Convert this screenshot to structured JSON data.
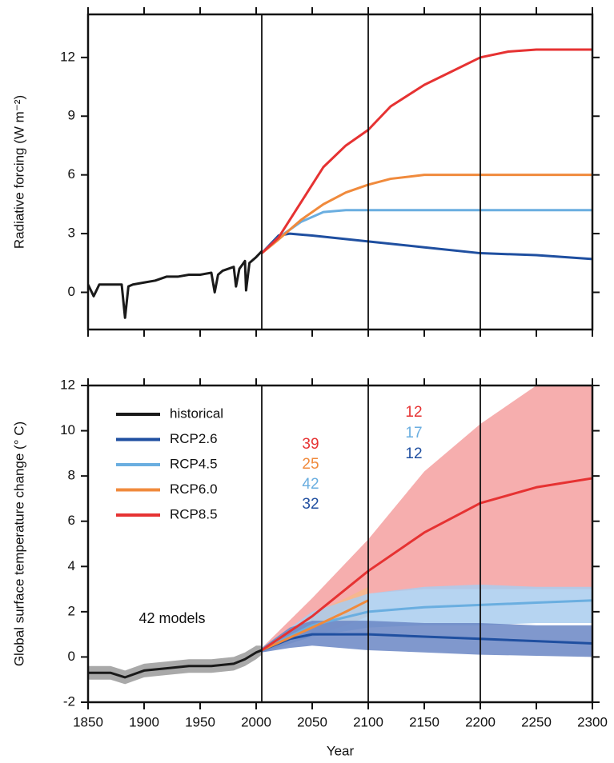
{
  "chart_data": [
    {
      "type": "line",
      "ylabel": "Radiative  forcing (W m⁻²)",
      "xlim": [
        1850,
        2300
      ],
      "ylim": [
        -1.9,
        14.2
      ],
      "xticks": [
        1850,
        1900,
        1950,
        2000,
        2050,
        2100,
        2150,
        2200,
        2250,
        2300
      ],
      "xticklabels": false,
      "yticks": [
        0,
        3,
        6,
        9,
        12
      ],
      "vlines": [
        2005,
        2100,
        2200
      ],
      "series": [
        {
          "name": "historical",
          "color": "#1a1a1a",
          "x": [
            1850,
            1855,
            1860,
            1870,
            1880,
            1883,
            1886,
            1890,
            1900,
            1910,
            1920,
            1930,
            1940,
            1950,
            1960,
            1963,
            1966,
            1970,
            1980,
            1982,
            1985,
            1990,
            1991,
            1994,
            2000,
            2005
          ],
          "values": [
            0.4,
            -0.2,
            0.4,
            0.4,
            0.4,
            -1.3,
            0.3,
            0.4,
            0.5,
            0.6,
            0.8,
            0.8,
            0.9,
            0.9,
            1.0,
            0.0,
            0.9,
            1.1,
            1.3,
            0.3,
            1.2,
            1.6,
            0.1,
            1.5,
            1.8,
            2.1
          ]
        },
        {
          "name": "RCP2.6",
          "color": "#1f4fa0",
          "x": [
            2005,
            2020,
            2030,
            2050,
            2100,
            2150,
            2200,
            2250,
            2300
          ],
          "values": [
            2.0,
            2.9,
            3.0,
            2.9,
            2.6,
            2.3,
            2.0,
            1.9,
            1.7
          ]
        },
        {
          "name": "RCP4.5",
          "color": "#6aaee0",
          "x": [
            2005,
            2020,
            2040,
            2060,
            2080,
            2100,
            2150,
            2300
          ],
          "values": [
            2.0,
            2.8,
            3.6,
            4.1,
            4.2,
            4.2,
            4.2,
            4.2
          ]
        },
        {
          "name": "RCP6.0",
          "color": "#f08a3c",
          "x": [
            2005,
            2020,
            2040,
            2060,
            2080,
            2100,
            2120,
            2150,
            2300
          ],
          "values": [
            2.0,
            2.7,
            3.7,
            4.5,
            5.1,
            5.5,
            5.8,
            6.0,
            6.0
          ]
        },
        {
          "name": "RCP8.5",
          "color": "#e63232",
          "x": [
            2005,
            2020,
            2040,
            2060,
            2080,
            2100,
            2120,
            2150,
            2175,
            2200,
            2225,
            2250,
            2300
          ],
          "values": [
            2.0,
            2.8,
            4.6,
            6.4,
            7.5,
            8.3,
            9.5,
            10.6,
            11.3,
            12.0,
            12.3,
            12.4,
            12.4
          ]
        }
      ]
    },
    {
      "type": "line",
      "xlabel": "Year",
      "ylabel": "Global surface temperature change (° C)",
      "xlim": [
        1850,
        2300
      ],
      "ylim": [
        -2,
        12
      ],
      "xticks": [
        1850,
        1900,
        1950,
        2000,
        2050,
        2100,
        2150,
        2200,
        2250,
        2300
      ],
      "xticklabels": true,
      "yticks": [
        -2,
        0,
        2,
        4,
        6,
        8,
        10,
        12
      ],
      "vlines": [
        2005,
        2100,
        2200
      ],
      "legend": "upper left",
      "annotations": [
        {
          "text": "42 models",
          "color": "#111"
        },
        {
          "text": 39,
          "color": "#e63232"
        },
        {
          "text": 25,
          "color": "#f08a3c"
        },
        {
          "text": 42,
          "color": "#6aaee0"
        },
        {
          "text": 32,
          "color": "#1f4fa0"
        },
        {
          "text": 12,
          "color": "#e63232"
        },
        {
          "text": 17,
          "color": "#6aaee0"
        },
        {
          "text": 12,
          "color": "#1f4fa0"
        }
      ],
      "series": [
        {
          "name": "historical",
          "color": "#1a1a1a",
          "band_color": "#9a9a9a",
          "x": [
            1850,
            1870,
            1883,
            1900,
            1920,
            1940,
            1960,
            1980,
            1990,
            2000,
            2005
          ],
          "values": [
            -0.7,
            -0.7,
            -0.9,
            -0.6,
            -0.5,
            -0.4,
            -0.4,
            -0.3,
            -0.1,
            0.2,
            0.3
          ],
          "low": [
            -1.0,
            -1.0,
            -1.2,
            -0.9,
            -0.8,
            -0.7,
            -0.7,
            -0.6,
            -0.4,
            -0.1,
            0.1
          ],
          "high": [
            -0.4,
            -0.4,
            -0.6,
            -0.3,
            -0.2,
            -0.1,
            -0.1,
            0.0,
            0.2,
            0.5,
            0.5
          ]
        },
        {
          "name": "RCP2.6",
          "color": "#1f4fa0",
          "band_color": "#6a86c4",
          "x": [
            2005,
            2030,
            2050,
            2100,
            2150,
            2200,
            2250,
            2300
          ],
          "values": [
            0.3,
            0.8,
            1.0,
            1.0,
            0.9,
            0.8,
            0.7,
            0.6
          ],
          "low": [
            0.2,
            0.4,
            0.5,
            0.3,
            0.2,
            0.1,
            0.05,
            0.0
          ],
          "high": [
            0.4,
            1.3,
            1.6,
            1.6,
            1.5,
            1.5,
            1.4,
            1.4
          ]
        },
        {
          "name": "RCP4.5",
          "color": "#6aaee0",
          "band_color": "#a9cdef",
          "x": [
            2005,
            2050,
            2100,
            2150,
            2200,
            2250,
            2300
          ],
          "values": [
            0.3,
            1.4,
            2.0,
            2.2,
            2.3,
            2.4,
            2.5
          ],
          "low": [
            0.2,
            0.9,
            1.3,
            1.4,
            1.4,
            1.5,
            1.5
          ],
          "high": [
            0.4,
            2.0,
            2.8,
            3.1,
            3.2,
            3.1,
            3.1
          ]
        },
        {
          "name": "RCP6.0",
          "color": "#f08a3c",
          "band_color": "#f6b889",
          "x": [
            2005,
            2050,
            2080,
            2100
          ],
          "values": [
            0.3,
            1.3,
            2.0,
            2.5
          ],
          "low": [
            0.2,
            0.9,
            1.4,
            1.8
          ],
          "high": [
            0.4,
            1.9,
            2.6,
            3.1
          ]
        },
        {
          "name": "RCP8.5",
          "color": "#e63232",
          "band_color": "#f5a0a0",
          "x": [
            2005,
            2050,
            2100,
            2150,
            2200,
            2250,
            2300
          ],
          "values": [
            0.3,
            1.8,
            3.8,
            5.5,
            6.8,
            7.5,
            7.9
          ],
          "low": [
            0.2,
            1.2,
            2.8,
            3.0,
            3.0,
            3.0,
            3.0
          ],
          "high": [
            0.4,
            2.6,
            5.2,
            8.2,
            10.3,
            12.0,
            12.0
          ]
        }
      ]
    }
  ]
}
